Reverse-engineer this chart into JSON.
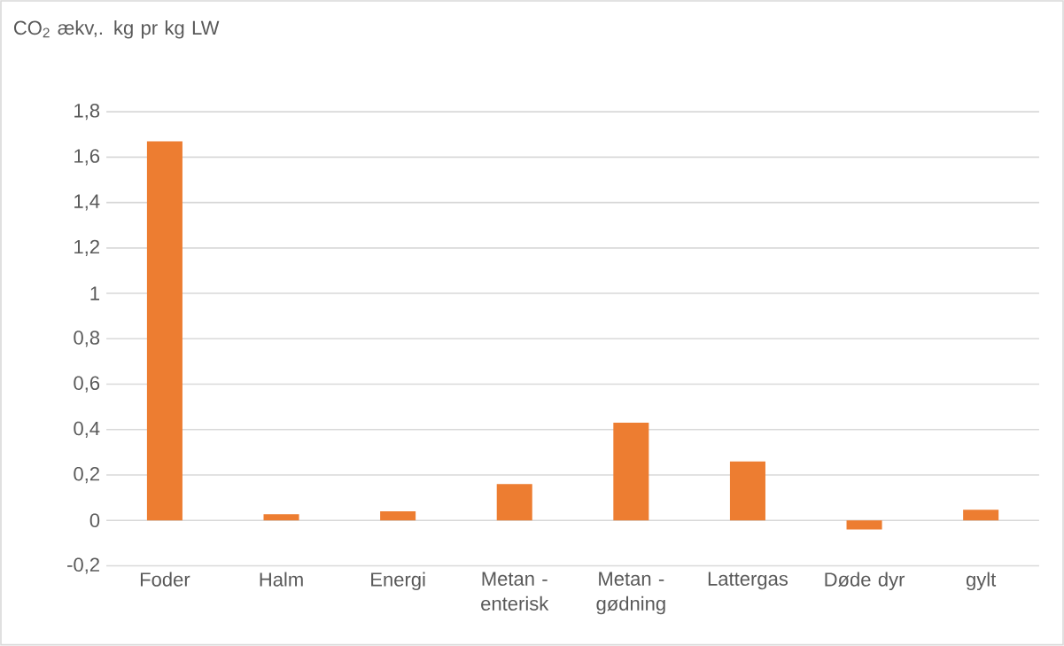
{
  "chart_data": {
    "type": "bar",
    "ylabel": "CO$_{2}$ ækv,. kg pr kg LW",
    "categories": [
      "Foder",
      "Halm",
      "Energi",
      "Metan - enterisk",
      "Metan - gødning",
      "Lattergas",
      "Døde dyr",
      "gylt"
    ],
    "values": [
      1.67,
      0.027,
      0.04,
      0.16,
      0.43,
      0.26,
      -0.04,
      0.047
    ],
    "color": "#ed7d31",
    "ylim": [
      -0.2,
      1.8
    ],
    "yticks": [
      {
        "value": -0.2,
        "label": "-0,2"
      },
      0,
      {
        "value": 0.2,
        "label": "0,2"
      },
      {
        "value": 0.4,
        "label": "0,4"
      },
      {
        "value": 0.6,
        "label": "0,6"
      },
      {
        "value": 0.8,
        "label": "0,8"
      },
      1,
      {
        "value": 1.2,
        "label": "1,2"
      },
      {
        "value": 1.4,
        "label": "1,4"
      },
      {
        "value": 1.6,
        "label": "1,6"
      },
      {
        "value": 1.8,
        "label": "1,8"
      }
    ],
    "grid": "y"
  }
}
